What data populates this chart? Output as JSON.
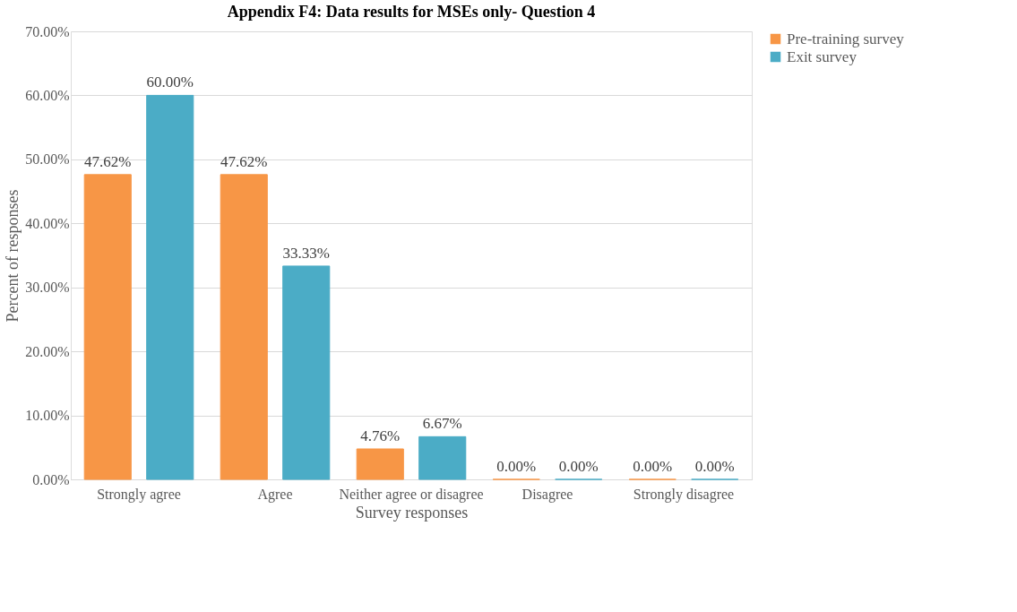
{
  "chart_data": {
    "type": "bar",
    "title": "Appendix F4: Data results for MSEs only- Question 4",
    "xlabel": "Survey responses",
    "ylabel": "Percent of responses",
    "categories": [
      "Strongly agree",
      "Agree",
      "Neither agree or disagree",
      "Disagree",
      "Strongly disagree"
    ],
    "series": [
      {
        "name": "Pre-training survey",
        "color": "#f79646",
        "values": [
          47.62,
          47.62,
          4.76,
          0,
          0
        ],
        "value_labels": [
          "47.62%",
          "47.62%",
          "4.76%",
          "0.00%",
          "0.00%"
        ]
      },
      {
        "name": "Exit survey",
        "color": "#4bacc6",
        "values": [
          60,
          33.33,
          6.67,
          0,
          0
        ],
        "value_labels": [
          "60.00%",
          "33.33%",
          "6.67%",
          "0.00%",
          "0.00%"
        ]
      }
    ],
    "ylim": [
      0,
      70
    ],
    "yticks": [
      {
        "value": 0,
        "label": "0.00%"
      },
      {
        "value": 10,
        "label": "10.00%"
      },
      {
        "value": 20,
        "label": "20.00%"
      },
      {
        "value": 30,
        "label": "30.00%"
      },
      {
        "value": 40,
        "label": "40.00%"
      },
      {
        "value": 50,
        "label": "50.00%"
      },
      {
        "value": 60,
        "label": "60.00%"
      },
      {
        "value": 70,
        "label": "70.00%"
      }
    ],
    "grid": "y",
    "legend": "right"
  }
}
